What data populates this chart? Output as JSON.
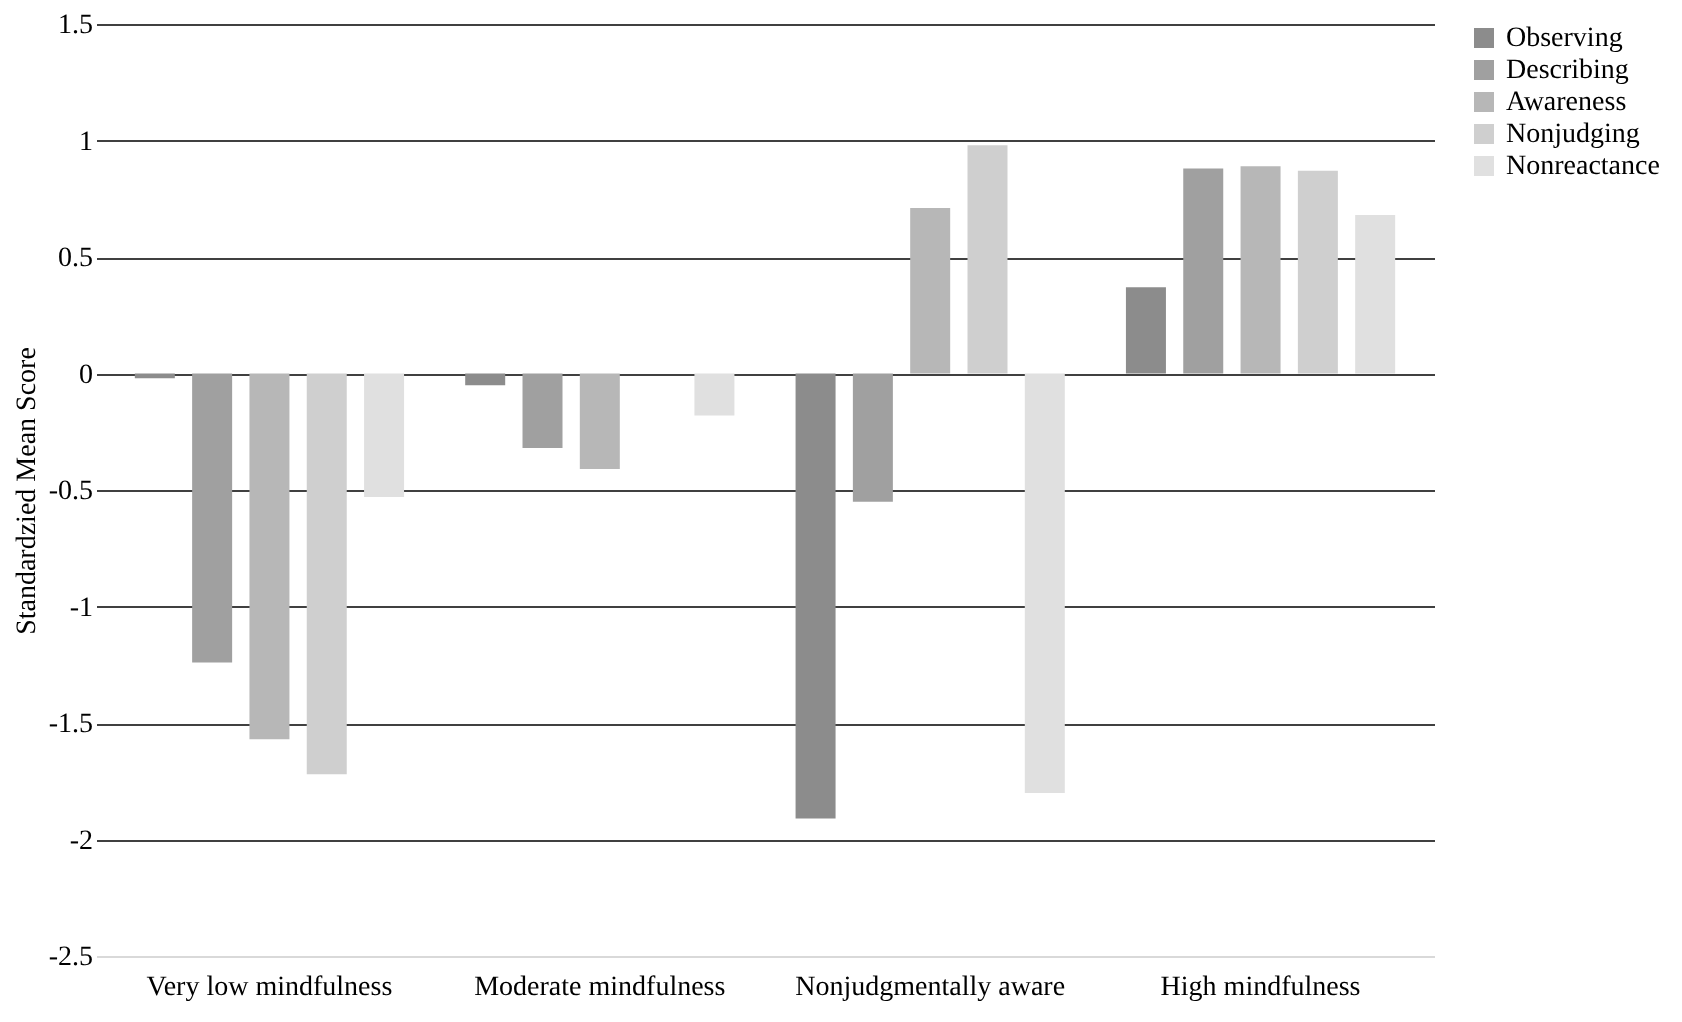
{
  "chart_data": {
    "type": "bar",
    "ylabel": "Standardzied Mean Score",
    "categories": [
      "Very low mindfulness",
      "Moderate mindfulness",
      "Nonjudgmentally aware",
      "High mindfulness"
    ],
    "series": [
      {
        "name": "Observing",
        "color": "#8c8c8c",
        "values": [
          -0.02,
          -0.05,
          -1.91,
          0.37
        ]
      },
      {
        "name": "Describing",
        "color": "#a0a0a0",
        "values": [
          -1.24,
          -0.32,
          -0.55,
          0.88
        ]
      },
      {
        "name": "Awareness",
        "color": "#b7b7b7",
        "values": [
          -1.57,
          -0.41,
          0.71,
          0.89
        ]
      },
      {
        "name": "Nonjudging",
        "color": "#cfcfcf",
        "values": [
          -1.72,
          0,
          0.98,
          0.87
        ]
      },
      {
        "name": "Nonreactance",
        "color": "#e0e0e0",
        "values": [
          -0.53,
          -0.18,
          -1.8,
          0.68
        ]
      }
    ],
    "ylim": [
      -2.5,
      1.5
    ],
    "yticks": [
      -2.5,
      -2,
      -1.5,
      -1,
      -0.5,
      0,
      0.5,
      1,
      1.5
    ],
    "grid": "y",
    "legend": "right"
  }
}
